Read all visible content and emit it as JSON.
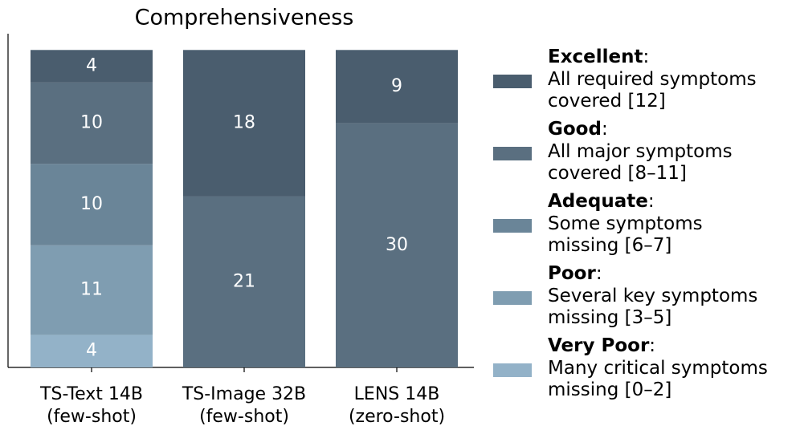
{
  "chart_data": {
    "type": "stacked-bar",
    "title": "Comprehensiveness",
    "categories": [
      "TS-Text 14B\n(few-shot)",
      "TS-Image 32B\n(few-shot)",
      "LENS 14B\n(zero-shot)"
    ],
    "series": [
      {
        "name": "Very Poor",
        "description": "Many critical symptoms\nmissing [0–2]",
        "color": "#93b2c8",
        "values": [
          4,
          null,
          null
        ]
      },
      {
        "name": "Poor",
        "description": "Several key symptoms\nmissing [3–5]",
        "color": "#7f9db1",
        "values": [
          11,
          null,
          null
        ]
      },
      {
        "name": "Adequate",
        "description": "Some symptoms\nmissing [6–7]",
        "color": "#6a8598",
        "values": [
          10,
          null,
          null
        ]
      },
      {
        "name": "Good",
        "description": "All major symptoms\ncovered [8–11]",
        "color": "#5a6f80",
        "values": [
          10,
          21,
          30
        ]
      },
      {
        "name": "Excellent",
        "description": "All required symptoms\ncovered [12]",
        "color": "#4a5d6e",
        "values": [
          4,
          18,
          9
        ]
      }
    ],
    "legend_separator": ":",
    "ylim": [
      0,
      41
    ]
  }
}
